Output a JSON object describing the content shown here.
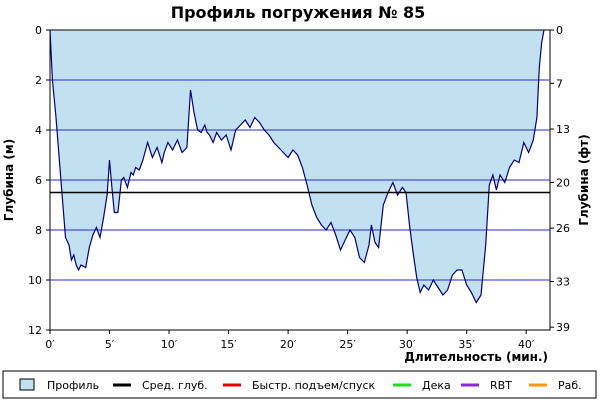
{
  "chart_data": {
    "type": "area",
    "title": "Профиль погружения № 85",
    "xlabel": "Длительность (мин.)",
    "ylabel_left": "Глубина (м)",
    "ylabel_right": "Глубина (фт)",
    "xlim": [
      0,
      42
    ],
    "ylim": [
      0,
      12
    ],
    "y_inverted": true,
    "x_ticks": [
      "0′",
      "5′",
      "10′",
      "15′",
      "20′",
      "25′",
      "30′",
      "35′",
      "40′"
    ],
    "y_ticks_left": [
      "0",
      "2",
      "4",
      "6",
      "8",
      "10",
      "12"
    ],
    "y_ticks_right": [
      "0",
      "7",
      "13",
      "20",
      "26",
      "33",
      "39"
    ],
    "grid": true,
    "avg_depth": 6.5,
    "colors": {
      "fill": "#c1e0f0",
      "line": "#000080",
      "grid": "#2a2acc",
      "avg": "#000000",
      "fast": "#e60000",
      "deco": "#22dd22",
      "rbt": "#8a2be2",
      "work": "#ff9900"
    },
    "series": [
      {
        "name": "Профиль",
        "x": [
          0,
          0.2,
          0.5,
          1,
          1.3,
          1.6,
          1.8,
          2.0,
          2.2,
          2.4,
          2.6,
          3.0,
          3.3,
          3.6,
          3.9,
          4.2,
          4.5,
          4.8,
          5.0,
          5.2,
          5.4,
          5.7,
          6.0,
          6.2,
          6.5,
          6.8,
          7.0,
          7.2,
          7.5,
          7.8,
          8.2,
          8.6,
          9.0,
          9.4,
          9.6,
          9.9,
          10.3,
          10.7,
          11.1,
          11.5,
          11.8,
          12.1,
          12.4,
          12.7,
          13.0,
          13.2,
          13.4,
          13.7,
          14.0,
          14.4,
          14.8,
          15.2,
          15.6,
          16.0,
          16.4,
          16.8,
          17.2,
          17.6,
          18.0,
          18.4,
          18.8,
          19.2,
          19.6,
          20.0,
          20.4,
          20.8,
          21.2,
          21.6,
          22.0,
          22.4,
          22.8,
          23.2,
          23.6,
          24.0,
          24.4,
          24.8,
          25.2,
          25.6,
          26.0,
          26.4,
          26.8,
          27.0,
          27.3,
          27.6,
          28.0,
          28.4,
          28.8,
          29.2,
          29.6,
          29.9,
          30.2,
          30.5,
          30.8,
          31.1,
          31.4,
          31.8,
          32.2,
          32.6,
          33.0,
          33.4,
          33.8,
          34.2,
          34.6,
          35.0,
          35.4,
          35.8,
          36.2,
          36.6,
          36.9,
          37.2,
          37.5,
          37.8,
          38.2,
          38.6,
          39.0,
          39.4,
          39.8,
          40.2,
          40.6,
          40.9,
          41.1,
          41.3,
          41.5
        ],
        "y": [
          0,
          2.0,
          3.5,
          6.5,
          8.3,
          8.6,
          9.2,
          9.0,
          9.4,
          9.6,
          9.4,
          9.5,
          8.7,
          8.2,
          7.9,
          8.3,
          7.5,
          6.6,
          5.2,
          6.3,
          7.3,
          7.3,
          6.0,
          5.9,
          6.3,
          5.7,
          5.8,
          5.5,
          5.6,
          5.2,
          4.5,
          5.1,
          4.7,
          5.3,
          4.9,
          4.5,
          4.8,
          4.4,
          4.9,
          4.7,
          2.4,
          3.3,
          4.0,
          4.1,
          3.8,
          4.1,
          4.2,
          4.5,
          4.1,
          4.4,
          4.2,
          4.8,
          4.0,
          3.8,
          3.6,
          3.9,
          3.5,
          3.7,
          4.0,
          4.2,
          4.5,
          4.7,
          4.9,
          5.1,
          4.8,
          5.0,
          5.5,
          6.2,
          7.0,
          7.5,
          7.8,
          8.0,
          7.7,
          8.2,
          8.8,
          8.4,
          8.0,
          8.3,
          9.1,
          9.3,
          8.6,
          7.8,
          8.5,
          8.7,
          7.0,
          6.5,
          6.1,
          6.6,
          6.3,
          6.5,
          7.8,
          8.9,
          9.9,
          10.5,
          10.2,
          10.4,
          10.0,
          10.3,
          10.6,
          10.4,
          9.8,
          9.6,
          9.6,
          10.2,
          10.5,
          10.9,
          10.6,
          8.6,
          6.2,
          5.8,
          6.4,
          5.8,
          6.1,
          5.5,
          5.2,
          5.3,
          4.5,
          4.9,
          4.4,
          3.5,
          1.5,
          0.5,
          0
        ]
      }
    ],
    "legend": [
      {
        "key": "fill",
        "label": "Профиль",
        "kind": "box"
      },
      {
        "key": "avg",
        "label": "Сред. глуб.",
        "kind": "line"
      },
      {
        "key": "fast",
        "label": "Быстр. подъем/спуск",
        "kind": "line"
      },
      {
        "key": "deco",
        "label": "Дека",
        "kind": "line"
      },
      {
        "key": "rbt",
        "label": "RBT",
        "kind": "line"
      },
      {
        "key": "work",
        "label": "Раб.",
        "kind": "line"
      }
    ],
    "legend_position": "bottom"
  }
}
